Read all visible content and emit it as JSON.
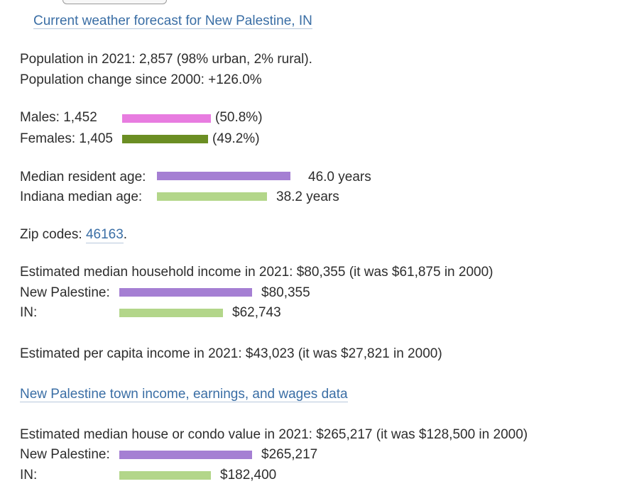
{
  "forecast_link": "Current weather forecast for New Palestine, IN",
  "population": {
    "line1": "Population in 2021: 2,857 (98% urban, 2% rural).",
    "line2": "Population change since 2000: +126.0%"
  },
  "gender": {
    "males_label": "Males: 1,452",
    "males_pct": "(50.8%)",
    "males_share": 0.508,
    "females_label": "Females: 1,405",
    "females_pct": "(49.2%)",
    "females_share": 0.492,
    "male_color": "#e87ce0",
    "female_color": "#6b8e23"
  },
  "age": {
    "median_label": "Median resident age:",
    "median_value": "46.0 years",
    "state_label": "Indiana median age:",
    "state_value": "38.2 years"
  },
  "zip": {
    "label": "Zip codes:",
    "code": "46163",
    "suffix": "."
  },
  "household_income": {
    "heading": "Estimated median household income in 2021: $80,355 (it was $61,875 in 2000)",
    "town_label": "New Palestine:",
    "town_value": "$80,355",
    "state_label": "IN:",
    "state_value": "$62,743"
  },
  "per_capita": {
    "text": "Estimated per capita income in 2021: $43,023 (it was $27,821 in 2000)"
  },
  "income_link": "New Palestine town income, earnings, and wages data",
  "house_value": {
    "heading": "Estimated median house or condo value in 2021: $265,217 (it was $128,500 in 2000)",
    "town_label": "New Palestine:",
    "town_value": "$265,217",
    "state_label": "IN:",
    "state_value": "$182,400"
  },
  "colors": {
    "town_bar": "#a57fd3",
    "state_bar": "#b3d68a",
    "link": "#3a6ea5"
  }
}
